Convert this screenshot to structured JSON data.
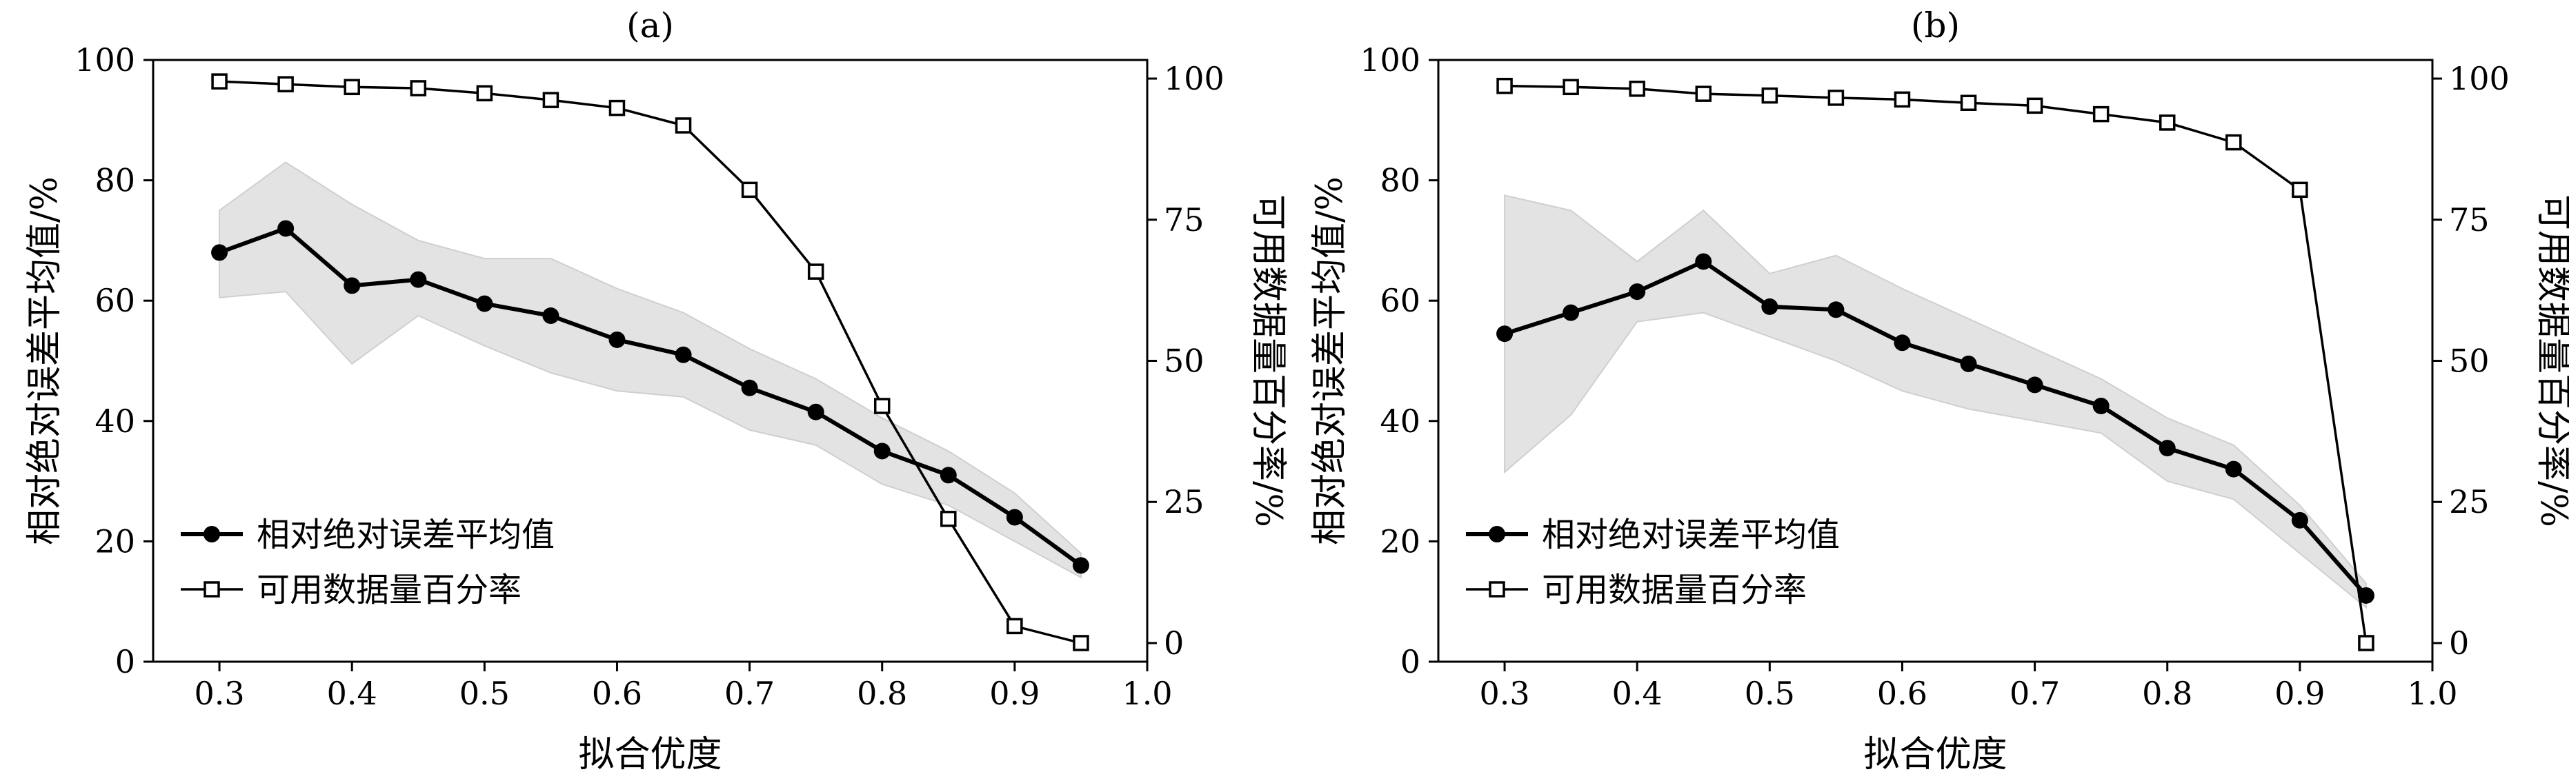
{
  "chart_data": [
    {
      "type": "line",
      "title": "(a)",
      "xlabel": "拟合优度",
      "ylabel": "相对绝对误差平均值/%",
      "y2label": "可用数据量百分率/%",
      "xlim": [
        0.25,
        1.0
      ],
      "ylim": [
        0,
        100
      ],
      "y2lim": [
        -3.3,
        103.3
      ],
      "xticks": [
        "0.3",
        "0.4",
        "0.5",
        "0.6",
        "0.7",
        "0.8",
        "0.9",
        "1.0"
      ],
      "yticks": [
        "0",
        "20",
        "40",
        "60",
        "80",
        "100"
      ],
      "y2ticks": [
        "0",
        "25",
        "50",
        "75",
        "100"
      ],
      "x": [
        0.3,
        0.35,
        0.4,
        0.45,
        0.5,
        0.55,
        0.6,
        0.65,
        0.7,
        0.75,
        0.8,
        0.85,
        0.9,
        0.95
      ],
      "series": [
        {
          "name": "相对绝对误差平均值",
          "axis": "left",
          "marker": "filled-circle",
          "values": [
            68,
            72,
            62.5,
            63.5,
            59.5,
            57.5,
            53.5,
            51,
            45.5,
            41.5,
            35,
            31,
            24,
            16
          ]
        },
        {
          "name": "可用数据量百分率",
          "axis": "right",
          "marker": "open-square",
          "values": [
            99.5,
            99,
            98.5,
            98.3,
            97.4,
            96.2,
            94.8,
            91.7,
            80.3,
            65.8,
            42,
            22,
            3,
            0
          ]
        }
      ],
      "band": {
        "upper": [
          75,
          83,
          76,
          70,
          67,
          67,
          62,
          58,
          52,
          47,
          40.5,
          35,
          28,
          18
        ],
        "lower": [
          60.5,
          61.5,
          49.5,
          57.5,
          52.5,
          48,
          45,
          44,
          38.5,
          36,
          29.5,
          26,
          20,
          14
        ]
      },
      "legend_position": "bottom-left"
    },
    {
      "type": "line",
      "title": "(b)",
      "xlabel": "拟合优度",
      "ylabel": "相对绝对误差平均值/%",
      "y2label": "可用数据量百分率/%",
      "xlim": [
        0.25,
        1.0
      ],
      "ylim": [
        0,
        100
      ],
      "y2lim": [
        -3.3,
        103.3
      ],
      "xticks": [
        "0.3",
        "0.4",
        "0.5",
        "0.6",
        "0.7",
        "0.8",
        "0.9",
        "1.0"
      ],
      "yticks": [
        "0",
        "20",
        "40",
        "60",
        "80",
        "100"
      ],
      "y2ticks": [
        "0",
        "25",
        "50",
        "75",
        "100"
      ],
      "x": [
        0.3,
        0.35,
        0.4,
        0.45,
        0.5,
        0.55,
        0.6,
        0.65,
        0.7,
        0.75,
        0.8,
        0.85,
        0.9,
        0.95
      ],
      "series": [
        {
          "name": "相对绝对误差平均值",
          "axis": "left",
          "marker": "filled-circle",
          "values": [
            54.5,
            58,
            61.5,
            66.5,
            59,
            58.5,
            53,
            49.5,
            46,
            42.5,
            35.5,
            32,
            23.5,
            11
          ]
        },
        {
          "name": "可用数据量百分率",
          "axis": "right",
          "marker": "open-square",
          "values": [
            98.7,
            98.5,
            98.2,
            97.3,
            97,
            96.6,
            96.3,
            95.7,
            95.2,
            93.7,
            92.2,
            88.7,
            80.3,
            0
          ]
        }
      ],
      "band": {
        "upper": [
          77.5,
          75,
          66.5,
          75,
          64.5,
          67.5,
          62,
          57,
          52,
          47,
          40.5,
          36,
          26,
          13
        ],
        "lower": [
          31.5,
          41,
          56.5,
          58,
          54,
          50,
          45,
          42,
          40,
          38,
          30,
          27,
          18,
          9
        ]
      },
      "legend_position": "bottom-left"
    }
  ]
}
